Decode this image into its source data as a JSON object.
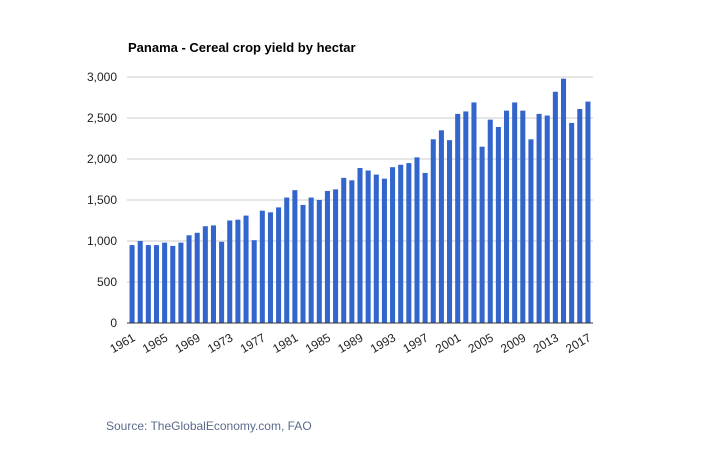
{
  "source_text": "Source: TheGlobalEconomy.com, FAO",
  "colors": {
    "bar": "#3366cc",
    "grid": "#cccccc",
    "source": "#5b6b8c"
  },
  "chart_data": {
    "type": "bar",
    "title": "Panama - Cereal crop yield by hectar",
    "xlabel": "",
    "ylabel": "",
    "ylim": [
      0,
      3000
    ],
    "yticks": [
      0,
      500,
      1000,
      1500,
      2000,
      2500,
      3000
    ],
    "ytick_labels": [
      "0",
      "500",
      "1,000",
      "1,500",
      "2,000",
      "2,500",
      "3,000"
    ],
    "xtick_labels": [
      "1961",
      "1965",
      "1969",
      "1973",
      "1977",
      "1981",
      "1985",
      "1989",
      "1993",
      "1997",
      "2001",
      "2005",
      "2009",
      "2013",
      "2017"
    ],
    "grid": true,
    "legend": "none",
    "categories": [
      "1961",
      "1962",
      "1963",
      "1964",
      "1965",
      "1966",
      "1967",
      "1968",
      "1969",
      "1970",
      "1971",
      "1972",
      "1973",
      "1974",
      "1975",
      "1976",
      "1977",
      "1978",
      "1979",
      "1980",
      "1981",
      "1982",
      "1983",
      "1984",
      "1985",
      "1986",
      "1987",
      "1988",
      "1989",
      "1990",
      "1991",
      "1992",
      "1993",
      "1994",
      "1995",
      "1996",
      "1997",
      "1998",
      "1999",
      "2000",
      "2001",
      "2002",
      "2003",
      "2004",
      "2005",
      "2006",
      "2007",
      "2008",
      "2009",
      "2010",
      "2011",
      "2012",
      "2013",
      "2014",
      "2015",
      "2016",
      "2017"
    ],
    "values": [
      950,
      1000,
      950,
      950,
      980,
      940,
      980,
      1070,
      1100,
      1180,
      1190,
      990,
      1250,
      1260,
      1310,
      1010,
      1370,
      1350,
      1410,
      1530,
      1620,
      1440,
      1530,
      1500,
      1610,
      1630,
      1770,
      1740,
      1890,
      1860,
      1810,
      1760,
      1900,
      1930,
      1950,
      2020,
      1830,
      2240,
      2350,
      2230,
      2550,
      2580,
      2690,
      2150,
      2480,
      2390,
      2590,
      2690,
      2590,
      2240,
      2550,
      2530,
      2820,
      2980,
      2440,
      2610,
      2700
    ]
  }
}
